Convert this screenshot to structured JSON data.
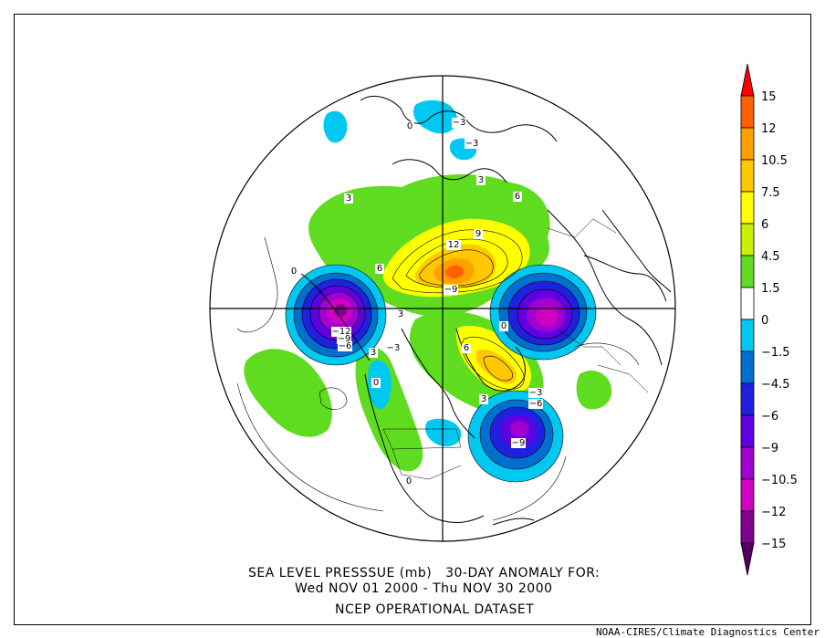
{
  "caption": {
    "line1": "SEA LEVEL PRESSSUE (mb)   30-DAY ANOMALY FOR:",
    "line2": "Wed NOV 01 2000 - Thu NOV 30 2000",
    "line3": "NCEP OPERATIONAL DATASET"
  },
  "credit": "NOAA-CIRES/Climate Diagnostics Center",
  "colorbar": {
    "levels": [
      "15",
      "12",
      "10.5",
      "7.5",
      "6",
      "4.5",
      "1.5",
      "0",
      "-1.5",
      "-4.5",
      "-6",
      "-9",
      "-10.5",
      "-12",
      "-15"
    ],
    "colors": [
      "#ff0000",
      "#ff6000",
      "#ffa000",
      "#ffc800",
      "#ffff00",
      "#c8f000",
      "#60dc20",
      "#ffffff",
      "#00c8f0",
      "#0070d0",
      "#2020e0",
      "#6000e0",
      "#a000d0",
      "#d000c0",
      "#800090",
      "#500060"
    ]
  },
  "contour_labels": [
    {
      "id": "a1",
      "text": "-3"
    },
    {
      "id": "a2",
      "text": "-3"
    },
    {
      "id": "a3",
      "text": "0"
    },
    {
      "id": "a4",
      "text": "3"
    },
    {
      "id": "a5",
      "text": "3"
    },
    {
      "id": "a6",
      "text": "6"
    },
    {
      "id": "a7",
      "text": "12"
    },
    {
      "id": "a8",
      "text": "9"
    },
    {
      "id": "a9",
      "text": "-9"
    },
    {
      "id": "a10",
      "text": "6"
    },
    {
      "id": "a11",
      "text": "0"
    },
    {
      "id": "a12",
      "text": "-12"
    },
    {
      "id": "a13",
      "text": "-9"
    },
    {
      "id": "a14",
      "text": "-6"
    },
    {
      "id": "a15",
      "text": "3"
    },
    {
      "id": "a16",
      "text": "-3"
    },
    {
      "id": "a17",
      "text": "3"
    },
    {
      "id": "a18",
      "text": "6"
    },
    {
      "id": "a19",
      "text": "0"
    },
    {
      "id": "a20",
      "text": "3"
    },
    {
      "id": "a21",
      "text": "-3"
    },
    {
      "id": "a22",
      "text": "-6"
    },
    {
      "id": "a23",
      "text": "-9"
    },
    {
      "id": "a24",
      "text": "0"
    },
    {
      "id": "a25",
      "text": "0"
    }
  ]
}
